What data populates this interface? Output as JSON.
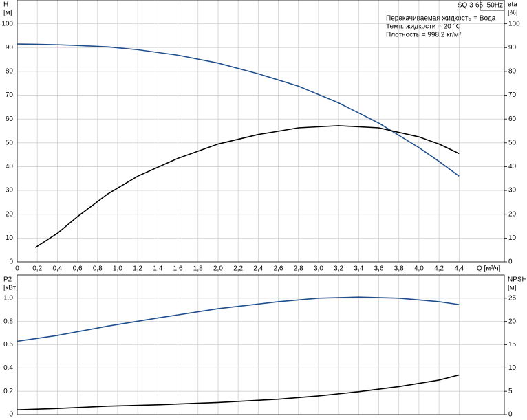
{
  "chart_data": [
    {
      "type": "line",
      "title": "SQ 3-65, 50Hz",
      "annotations": [
        "Перекачиваемая жидкость = Вода",
        "Темп. жидкости = 20 °C",
        "Плотность = 998.2 кг/м³"
      ],
      "ylabel": [
        "H",
        "[м]"
      ],
      "y2label": [
        "eta",
        "[%]"
      ],
      "xlabel": "Q [м³/ч]",
      "x": [
        0,
        0.18,
        0.4,
        0.6,
        0.9,
        1.2,
        1.6,
        2.0,
        2.4,
        2.8,
        3.2,
        3.6,
        4.0,
        4.2,
        4.4
      ],
      "series": [
        {
          "name": "H",
          "color": "#1f4e8c",
          "values": [
            91.5,
            91.4,
            91.2,
            90.9,
            90.3,
            89.1,
            86.8,
            83.5,
            79,
            73.8,
            66.8,
            58.3,
            48,
            42.2,
            36
          ]
        },
        {
          "name": "eta",
          "color": "#000000",
          "axis": "y2",
          "values": [
            null,
            6,
            12,
            19,
            28.5,
            36,
            43.5,
            49.5,
            53.5,
            56.3,
            57.2,
            56.3,
            52.5,
            49.5,
            45.5
          ]
        }
      ],
      "xlim": [
        0,
        4.85
      ],
      "ylim": [
        0,
        110
      ],
      "y2lim": [
        0,
        110
      ],
      "xticks": [
        0,
        {
          "value": 0.2,
          "label": "0,2"
        },
        {
          "value": 0.4,
          "label": "0,4"
        },
        {
          "value": 0.6,
          "label": "0,6"
        },
        {
          "value": 0.8,
          "label": "0,8"
        },
        {
          "value": 1.0,
          "label": "1,0"
        },
        {
          "value": 1.2,
          "label": "1,2"
        },
        {
          "value": 1.4,
          "label": "1,4"
        },
        {
          "value": 1.6,
          "label": "1,6"
        },
        {
          "value": 1.8,
          "label": "1,8"
        },
        {
          "value": 2.0,
          "label": "2,0"
        },
        {
          "value": 2.2,
          "label": "2,2"
        },
        {
          "value": 2.4,
          "label": "2,4"
        },
        {
          "value": 2.6,
          "label": "2,6"
        },
        {
          "value": 2.8,
          "label": "2,8"
        },
        {
          "value": 3.0,
          "label": "3,0"
        },
        {
          "value": 3.2,
          "label": "3,2"
        },
        {
          "value": 3.4,
          "label": "3,4"
        },
        {
          "value": 3.6,
          "label": "3,6"
        },
        {
          "value": 3.8,
          "label": "3,8"
        },
        {
          "value": 4.0,
          "label": "4,0"
        },
        {
          "value": 4.2,
          "label": "4,2"
        },
        {
          "value": 4.4,
          "label": "4,4"
        }
      ],
      "yticks": [
        0,
        10,
        20,
        30,
        40,
        50,
        60,
        70,
        80,
        90,
        100
      ],
      "y2ticks": [
        0,
        10,
        20,
        30,
        40,
        50,
        60,
        70,
        80,
        90,
        100
      ],
      "grid": true
    },
    {
      "type": "line",
      "ylabel": [
        "P2",
        "[кВт]"
      ],
      "y2label": [
        "NPSH",
        "[м]"
      ],
      "x": [
        0,
        0.4,
        0.9,
        1.4,
        2.0,
        2.6,
        3.0,
        3.4,
        3.8,
        4.2,
        4.4
      ],
      "series": [
        {
          "name": "P2",
          "color": "#1f4e8c",
          "values": [
            0.63,
            0.68,
            0.76,
            0.83,
            0.91,
            0.97,
            1.0,
            1.01,
            1.0,
            0.97,
            0.945
          ]
        },
        {
          "name": "NPSH",
          "color": "#000000",
          "axis": "y2",
          "values": [
            1.0,
            1.3,
            1.8,
            2.1,
            2.6,
            3.3,
            4.0,
            4.9,
            6.0,
            7.4,
            8.5
          ]
        }
      ],
      "xlim": [
        0,
        4.85
      ],
      "ylim": [
        0,
        1.2
      ],
      "y2lim": [
        0,
        30
      ],
      "yticks": [
        0,
        0.2,
        0.4,
        0.6,
        0.8,
        {
          "value": 1.0,
          "label": "1.0"
        }
      ],
      "y2ticks": [
        0,
        5,
        10,
        15,
        20,
        25
      ],
      "grid": true
    }
  ]
}
